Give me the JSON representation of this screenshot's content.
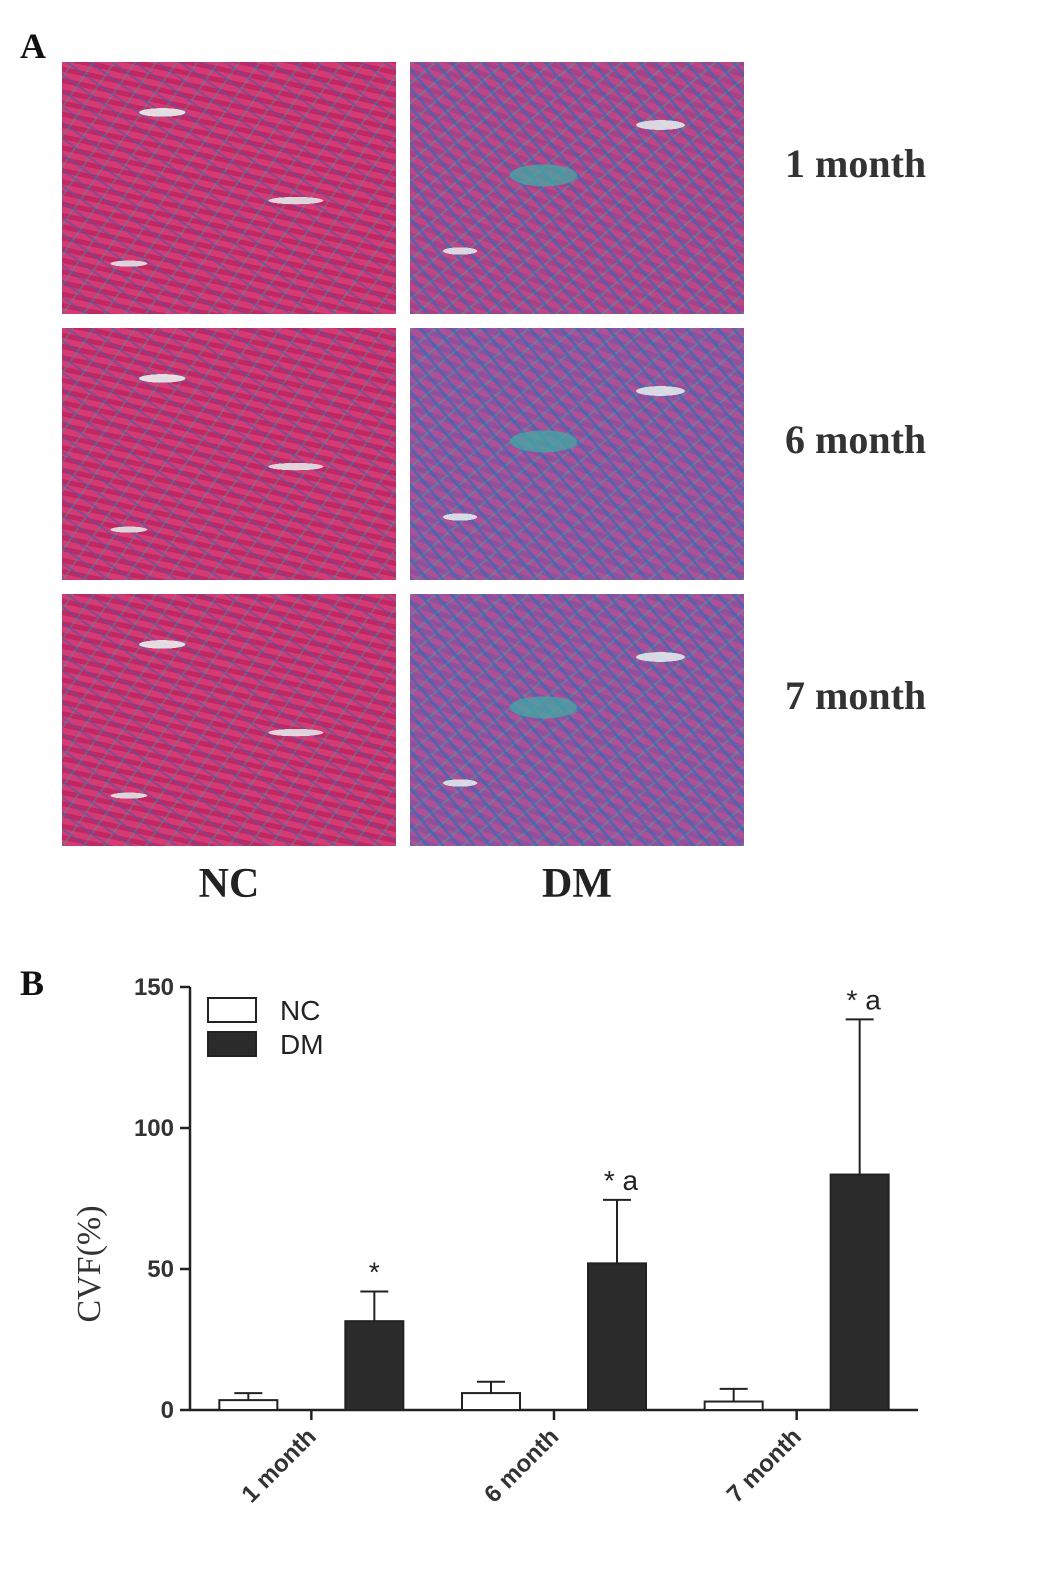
{
  "panel_a": {
    "label": "A",
    "row_labels": [
      "1 month",
      "6 month",
      "7 month"
    ],
    "column_labels": [
      "NC",
      "DM"
    ]
  },
  "panel_b": {
    "label": "B"
  },
  "chart_data": {
    "type": "bar",
    "xlabel": "",
    "ylabel": "CVF(%)",
    "ylim": [
      0,
      150
    ],
    "yticks": [
      0,
      50,
      100,
      150
    ],
    "categories": [
      "1 month",
      "6 month",
      "7 month"
    ],
    "legend_position": "top-left",
    "series": [
      {
        "name": "NC",
        "values": [
          3.5,
          6,
          3
        ],
        "errors": [
          2.5,
          4,
          4.5
        ],
        "color": "#ffffff",
        "annotations": [
          "",
          "",
          ""
        ]
      },
      {
        "name": "DM",
        "values": [
          31.5,
          52,
          83.5
        ],
        "errors": [
          10.5,
          22.5,
          55
        ],
        "color": "#2b2b2b",
        "annotations": [
          "*",
          "* a",
          "* a"
        ]
      }
    ]
  }
}
